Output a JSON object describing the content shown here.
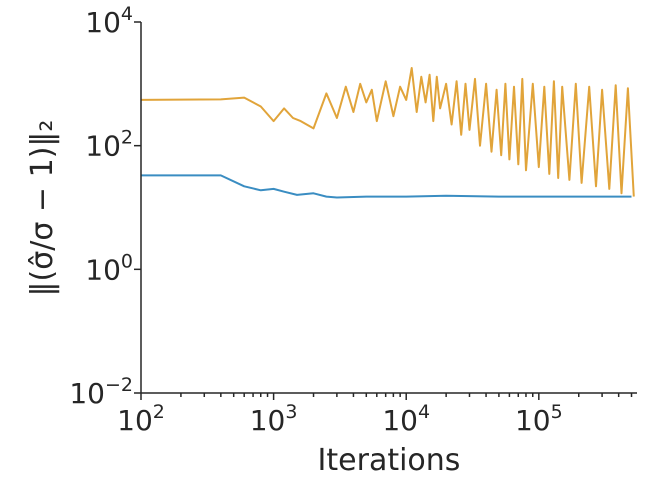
{
  "chart_data": {
    "type": "line",
    "title": "",
    "xlabel": "Iterations",
    "ylabel": "‖(σ̂/σ − 1)‖₂",
    "xscale": "log",
    "yscale": "log",
    "xlim": [
      100,
      550000
    ],
    "ylim": [
      0.01,
      10000
    ],
    "grid": false,
    "legend": "none",
    "x_ticks": [
      {
        "value": 100,
        "mantissa": "10",
        "exp": "2"
      },
      {
        "value": 1000,
        "mantissa": "10",
        "exp": "3"
      },
      {
        "value": 10000,
        "mantissa": "10",
        "exp": "4"
      },
      {
        "value": 100000,
        "mantissa": "10",
        "exp": "5"
      }
    ],
    "y_ticks": [
      {
        "value": 0.01,
        "mantissa": "10",
        "exp": "−2"
      },
      {
        "value": 1,
        "mantissa": "10",
        "exp": "0"
      },
      {
        "value": 100,
        "mantissa": "10",
        "exp": "2"
      },
      {
        "value": 10000,
        "mantissa": "10",
        "exp": "4"
      }
    ],
    "series": [
      {
        "color": "#E1A43A",
        "x": [
          100,
          400,
          600,
          800,
          1000,
          1200,
          1400,
          1600,
          2000,
          2500,
          3000,
          3500,
          4000,
          4500,
          5000,
          5500,
          6000,
          7000,
          8000,
          9000,
          10000,
          11000,
          12000,
          13000,
          14000,
          15000,
          16000,
          17000,
          18000,
          20000,
          22000,
          24000,
          26000,
          28000,
          30000,
          33000,
          36000,
          40000,
          44000,
          48000,
          52000,
          56000,
          60000,
          65000,
          70000,
          75000,
          80000,
          90000,
          100000,
          110000,
          120000,
          130000,
          140000,
          150000,
          170000,
          190000,
          210000,
          240000,
          270000,
          300000,
          340000,
          380000,
          420000,
          470000,
          520000
        ],
        "y": [
          550,
          560,
          600,
          430,
          250,
          400,
          280,
          250,
          190,
          700,
          280,
          900,
          350,
          1000,
          500,
          800,
          250,
          1100,
          300,
          900,
          550,
          1800,
          350,
          1300,
          500,
          1400,
          250,
          1300,
          400,
          1000,
          220,
          1100,
          150,
          1000,
          180,
          1200,
          100,
          1000,
          80,
          800,
          70,
          1000,
          60,
          900,
          50,
          1200,
          40,
          1000,
          45,
          900,
          35,
          1100,
          30,
          900,
          28,
          1000,
          25,
          900,
          22,
          800,
          20,
          950,
          17,
          850,
          15
        ]
      },
      {
        "color": "#3A8DC2",
        "x": [
          100,
          200,
          400,
          600,
          800,
          1000,
          1200,
          1500,
          2000,
          2500,
          3000,
          5000,
          10000,
          20000,
          50000,
          100000,
          200000,
          500000
        ],
        "y": [
          33,
          33,
          33,
          22,
          19,
          20,
          18,
          16,
          17,
          15,
          14.5,
          15,
          15,
          15.5,
          15,
          15,
          15,
          15
        ]
      }
    ]
  }
}
